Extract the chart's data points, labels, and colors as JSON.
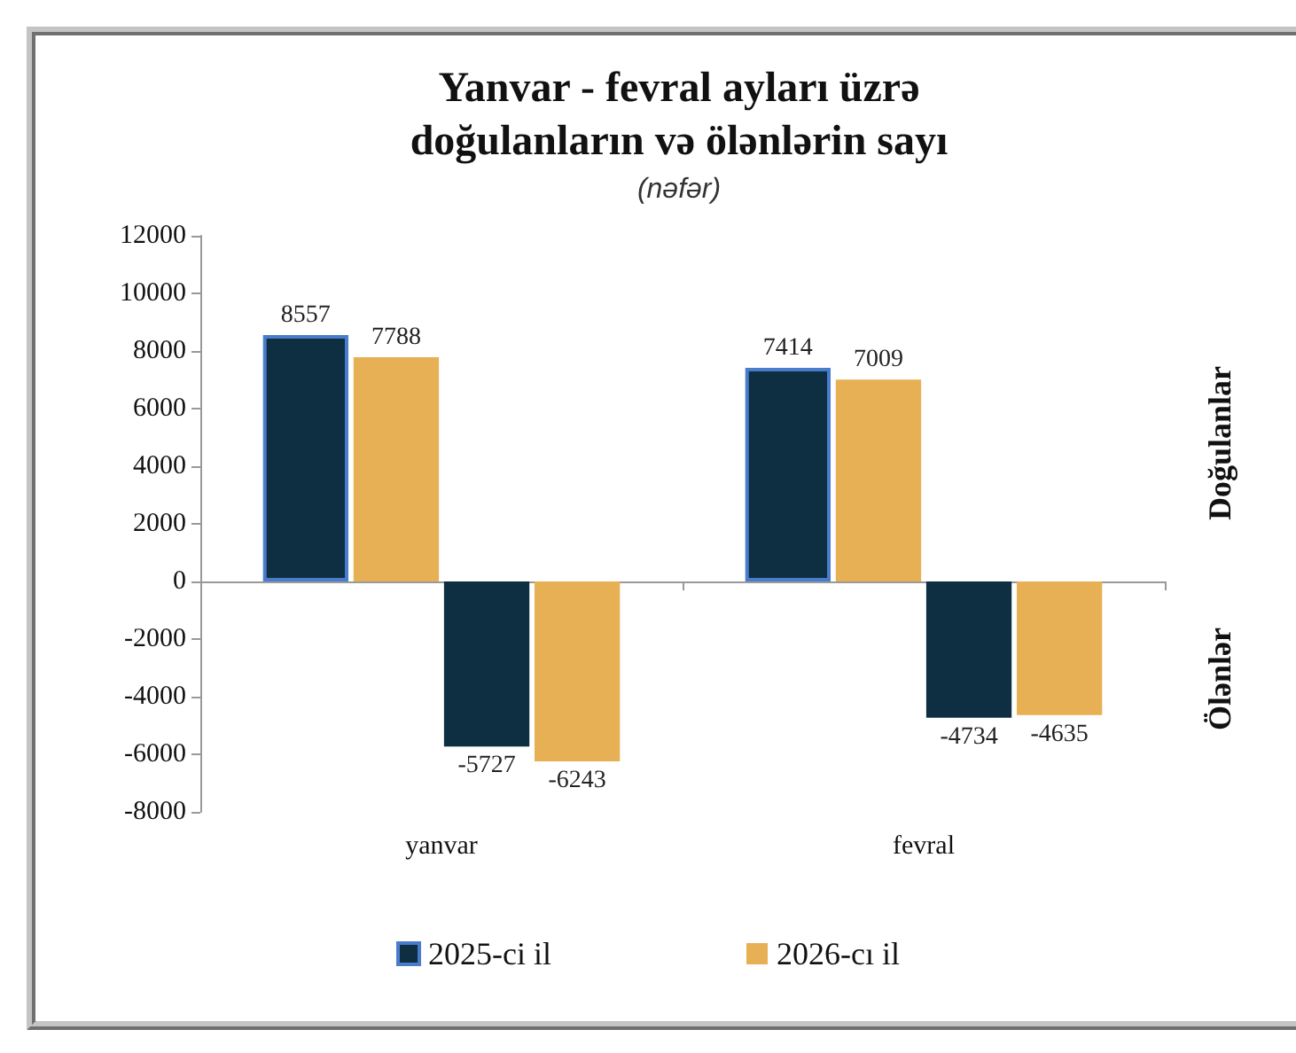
{
  "chart_data": {
    "type": "bar",
    "title": "Yanvar - fevral ayları üzrə doğulanların və ölənlərin sayı",
    "subtitle": "(nəfər)",
    "categories": [
      "yanvar",
      "fevral"
    ],
    "series": [
      {
        "name": "2025-ci il",
        "color": "#0e2e42",
        "values": [
          8557,
          7414
        ]
      },
      {
        "name": "2026-cı il",
        "color": "#e8b055",
        "values": [
          7788,
          7009
        ]
      },
      {
        "color": "#0e2e42",
        "values": [
          -5727,
          -4734
        ]
      },
      {
        "color": "#e8b055",
        "values": [
          -6243,
          -4635
        ]
      }
    ],
    "ylim": [
      -8000,
      12000
    ],
    "yticks": [
      -8000,
      -6000,
      -4000,
      -2000,
      0,
      2000,
      4000,
      6000,
      8000,
      10000,
      12000
    ],
    "annotations": [
      "Doğulanlar",
      "Ölənlər"
    ],
    "data_labels": true,
    "legend": "bottom"
  }
}
